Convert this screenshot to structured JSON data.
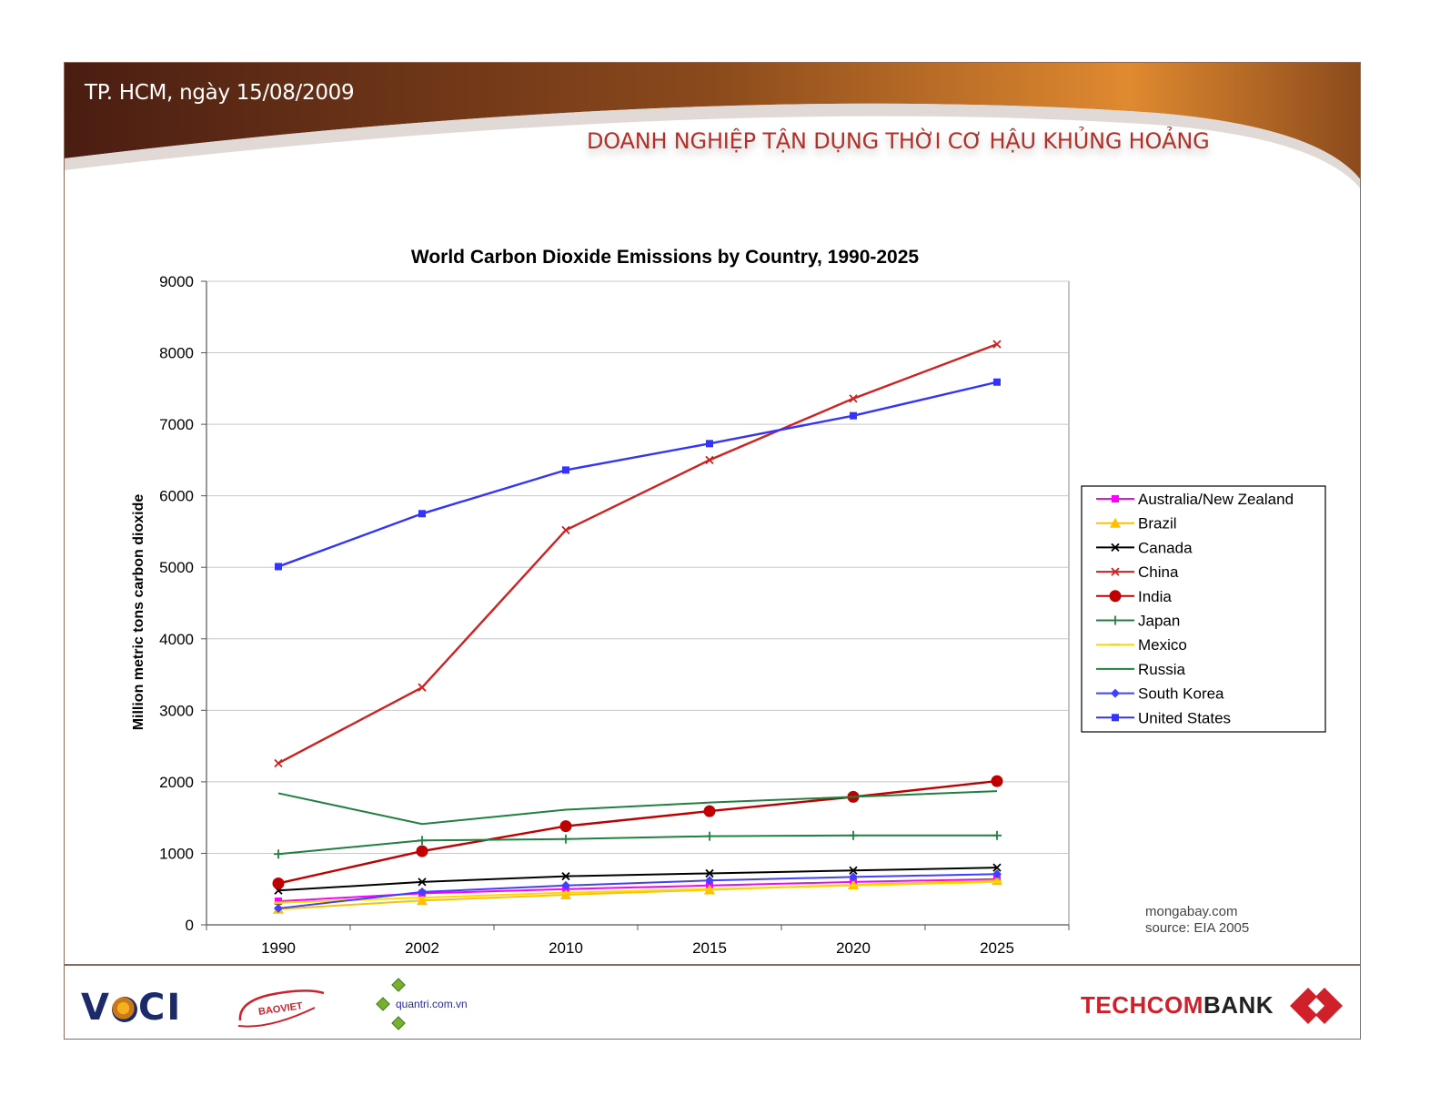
{
  "header": {
    "date_line": "TP. HCM, ngày 15/08/2009",
    "title": "DOANH NGHIỆP TẬN DỤNG THỜI CƠ HẬU KHỦNG HOẢNG",
    "banner_colors": [
      "#4a1d12",
      "#8b4a1c",
      "#e08a30"
    ]
  },
  "footer": {
    "logos": {
      "vcci_left": "V",
      "vcci_right": "CI",
      "baoviet": "BAOVIET",
      "quantri": "quantri.com.vn",
      "techcom": "TECHCOM",
      "bank": "BANK"
    }
  },
  "chart_data": {
    "type": "line",
    "title": "World Carbon Dioxide Emissions by Country, 1990-2025",
    "xlabel": "",
    "ylabel": "Million metric tons carbon dioxide",
    "categories": [
      "1990",
      "2002",
      "2010",
      "2015",
      "2020",
      "2025"
    ],
    "ylim": [
      0,
      9000
    ],
    "yticks": [
      "0",
      "1000",
      "2000",
      "3000",
      "4000",
      "5000",
      "6000",
      "7000",
      "8000",
      "9000"
    ],
    "grid": true,
    "legend_position": "right",
    "annotation": [
      "mongabay.com",
      "source: EIA 2005"
    ],
    "series": [
      {
        "name": "Australia/New Zealand",
        "color": "#ff00ff",
        "marker": "square",
        "values": [
          330,
          440,
          500,
          550,
          600,
          640
        ]
      },
      {
        "name": "Brazil",
        "color": "#ffc000",
        "marker": "triangle",
        "values": [
          220,
          340,
          420,
          490,
          560,
          620
        ]
      },
      {
        "name": "Canada",
        "color": "#000000",
        "marker": "x",
        "values": [
          480,
          600,
          680,
          720,
          760,
          800
        ]
      },
      {
        "name": "China",
        "color": "#d02020",
        "marker": "x",
        "values": [
          2260,
          3320,
          5520,
          6500,
          7360,
          8120
        ]
      },
      {
        "name": "India",
        "color": "#c00000",
        "marker": "circle",
        "values": [
          580,
          1030,
          1380,
          1590,
          1790,
          2010
        ]
      },
      {
        "name": "Japan",
        "color": "#208040",
        "marker": "plus",
        "values": [
          990,
          1180,
          1200,
          1240,
          1250,
          1250
        ]
      },
      {
        "name": "Mexico",
        "color": "#ffd700",
        "marker": "dash",
        "values": [
          310,
          380,
          450,
          500,
          550,
          600
        ]
      },
      {
        "name": "Russia",
        "color": "#208040",
        "marker": "none",
        "values": [
          1840,
          1410,
          1610,
          1710,
          1790,
          1870
        ]
      },
      {
        "name": "South Korea",
        "color": "#4040ff",
        "marker": "diamond",
        "values": [
          230,
          460,
          550,
          620,
          670,
          710
        ]
      },
      {
        "name": "United States",
        "color": "#3333ff",
        "marker": "square",
        "values": [
          5010,
          5750,
          6360,
          6730,
          7120,
          7590
        ]
      }
    ]
  }
}
